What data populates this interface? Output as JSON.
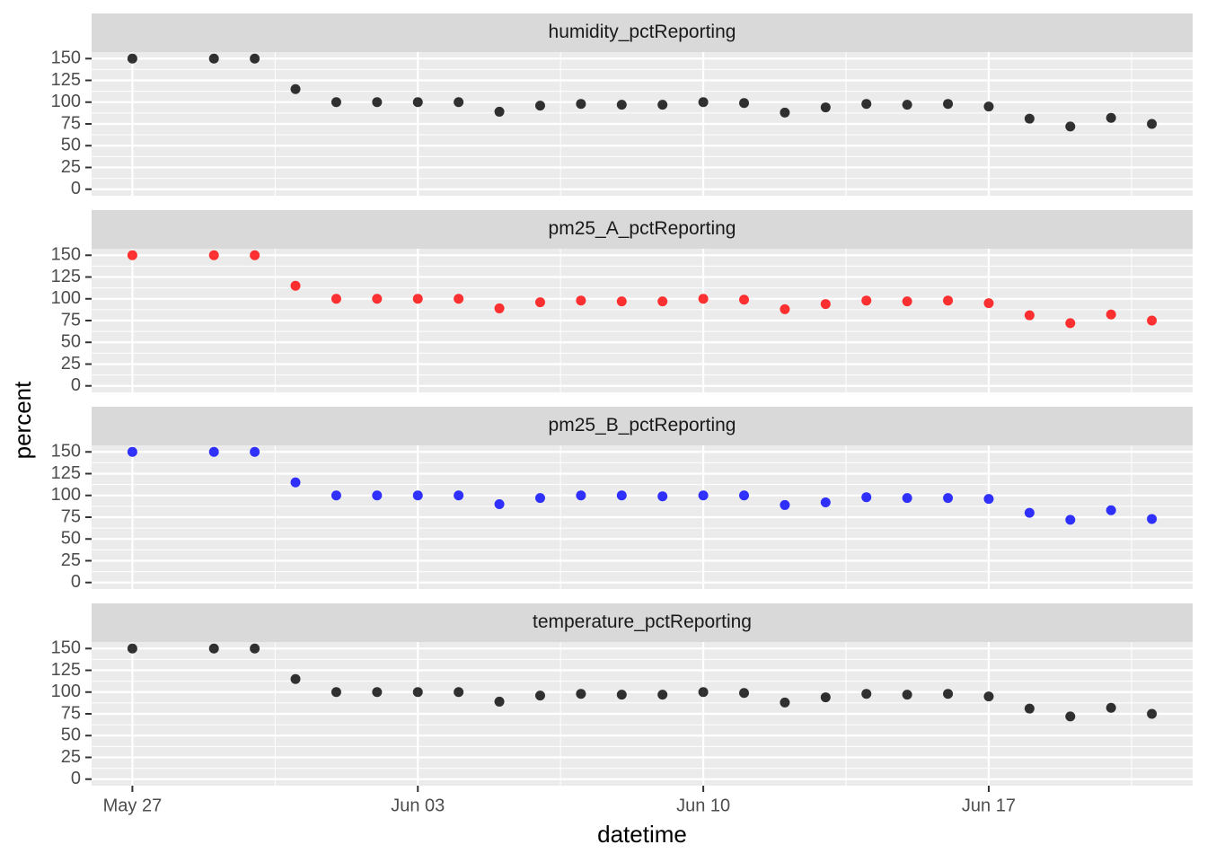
{
  "chart_data": {
    "type": "scatter",
    "xlabel": "datetime",
    "ylabel": "percent",
    "x": [
      "May 27",
      "May 29",
      "May 30",
      "May 31",
      "Jun 01",
      "Jun 02",
      "Jun 03",
      "Jun 04",
      "Jun 05",
      "Jun 06",
      "Jun 07",
      "Jun 08",
      "Jun 09",
      "Jun 10",
      "Jun 11",
      "Jun 12",
      "Jun 13",
      "Jun 14",
      "Jun 15",
      "Jun 16",
      "Jun 17",
      "Jun 18",
      "Jun 19",
      "Jun 20",
      "Jun 21"
    ],
    "xlim": [
      "May 26",
      "Jun 22"
    ],
    "xticks": [
      "May 27",
      "Jun 03",
      "Jun 10",
      "Jun 17"
    ],
    "ylim": [
      -7.5,
      157.5
    ],
    "yticks": [
      0,
      25,
      50,
      75,
      100,
      125,
      150
    ],
    "grid": true,
    "series": [
      {
        "name": "humidity_pctReporting",
        "color": "#000000",
        "values": [
          150,
          150,
          150,
          115,
          100,
          100,
          100,
          100,
          89,
          96,
          98,
          97,
          97,
          100,
          99,
          88,
          94,
          98,
          97,
          98,
          95,
          81,
          72,
          82,
          75
        ]
      },
      {
        "name": "pm25_A_pctReporting",
        "color": "#ff0000",
        "values": [
          150,
          150,
          150,
          115,
          100,
          100,
          100,
          100,
          89,
          96,
          98,
          97,
          97,
          100,
          99,
          88,
          94,
          98,
          97,
          98,
          95,
          81,
          72,
          82,
          75
        ]
      },
      {
        "name": "pm25_B_pctReporting",
        "color": "#0000ff",
        "values": [
          150,
          150,
          150,
          115,
          100,
          100,
          100,
          100,
          90,
          97,
          100,
          100,
          99,
          100,
          100,
          89,
          92,
          98,
          97,
          97,
          96,
          80,
          72,
          83,
          73
        ]
      },
      {
        "name": "temperature_pctReporting",
        "color": "#000000",
        "values": [
          150,
          150,
          150,
          115,
          100,
          100,
          100,
          100,
          89,
          96,
          98,
          97,
          97,
          100,
          99,
          88,
          94,
          98,
          97,
          98,
          95,
          81,
          72,
          82,
          75
        ]
      }
    ]
  }
}
